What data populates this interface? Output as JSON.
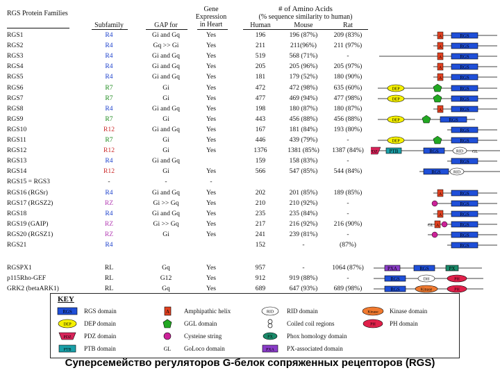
{
  "headers": {
    "families": "RGS Protein Families",
    "subfamily": "Subfamily",
    "gap": "GAP for",
    "gene": "Gene Expression in Heart",
    "amino": "# of Amino Acids",
    "amino_sub": "(% sequence similarity to human)",
    "human": "Human",
    "mouse": "Mouse",
    "rat": "Rat"
  },
  "rows": [
    {
      "name": "RGS1",
      "sub": "R4",
      "sub_color": "r4",
      "gap": "Gi and Gq",
      "gene": "Yes",
      "human": "196",
      "mouse": "196 (87%)",
      "rat": "209 (83%)",
      "dom": "A-RGS"
    },
    {
      "name": "RGS2",
      "sub": "R4",
      "sub_color": "r4",
      "gap": "Gq >> Gi",
      "gene": "Yes",
      "human": "211",
      "mouse": "211(96%)",
      "rat": "211 (97%)",
      "dom": "A-RGS"
    },
    {
      "name": "RGS3",
      "sub": "R4",
      "sub_color": "r4",
      "gap": "Gi and Gq",
      "gene": "Yes",
      "human": "519",
      "mouse": "568 (71%)",
      "rat": "-",
      "dom": "long-A-RGS"
    },
    {
      "name": "RGS4",
      "sub": "R4",
      "sub_color": "r4",
      "gap": "Gi and Gq",
      "gene": "Yes",
      "human": "205",
      "mouse": "205 (96%)",
      "rat": "205 (97%)",
      "dom": "A-RGS"
    },
    {
      "name": "RGS5",
      "sub": "R4",
      "sub_color": "r4",
      "gap": "Gi and Gq",
      "gene": "Yes",
      "human": "181",
      "mouse": "179 (52%)",
      "rat": "180 (90%)",
      "dom": "A-RGS"
    },
    {
      "name": "RGS6",
      "sub": "R7",
      "sub_color": "r7",
      "gap": "Gi",
      "gene": "Yes",
      "human": "472",
      "mouse": "472 (98%)",
      "rat": "635 (60%)",
      "dom": "DEP-GGL-RGS"
    },
    {
      "name": "RGS7",
      "sub": "R7",
      "sub_color": "r7",
      "gap": "Gi",
      "gene": "Yes",
      "human": "477",
      "mouse": "469 (94%)",
      "rat": "477 (98%)",
      "dom": "DEP-GGL-RGS"
    },
    {
      "name": "RGS8",
      "sub": "R4",
      "sub_color": "r4",
      "gap": "Gi and Gq",
      "gene": "Yes",
      "human": "198",
      "mouse": "180 (87%)",
      "rat": "180 (87%)",
      "dom": "A-RGS"
    },
    {
      "name": "RGS9",
      "sub": "R7",
      "sub_color": "r7",
      "gap": "Gi",
      "gene": "Yes",
      "human": "443",
      "mouse": "456 (88%)",
      "rat": "456 (88%)",
      "dom": "DEP-GGL-RGS-mid"
    },
    {
      "name": "RGS10",
      "sub": "R12",
      "sub_color": "r12",
      "gap": "Gi and Gq",
      "gene": "Yes",
      "human": "167",
      "mouse": "181 (84%)",
      "rat": "193 (80%)",
      "dom": "RGS"
    },
    {
      "name": "RGS11",
      "sub": "R7",
      "sub_color": "r7",
      "gap": "Gi",
      "gene": "Yes",
      "human": "446",
      "mouse": "439 (79%)",
      "rat": "-",
      "dom": "DEP-GGL-RGS"
    },
    {
      "name": "RGS12",
      "sub": "R12",
      "sub_color": "r12",
      "gap": "Gi",
      "gene": "Yes",
      "human": "1376",
      "mouse": "1381 (85%)",
      "rat": "1387 (84%)",
      "dom": "PDZ-PTB-RGS-RID"
    },
    {
      "name": "RGS13",
      "sub": "R4",
      "sub_color": "r4",
      "gap": "Gi and Gq",
      "gene": "",
      "human": "159",
      "mouse": "158 (83%)",
      "rat": "-",
      "dom": "RGS"
    },
    {
      "name": "RGS14",
      "sub": "R12",
      "sub_color": "r12",
      "gap": "Gi",
      "gene": "Yes",
      "human": "566",
      "mouse": "547 (85%)",
      "rat": "544 (84%)",
      "dom": "RGS-RID"
    },
    {
      "name": "RGS15 = RGS3",
      "sub": "-",
      "sub_color": "",
      "gap": "-",
      "gene": "-",
      "human": "",
      "mouse": "",
      "rat": "",
      "dom": ""
    },
    {
      "name": "RGS16 (RGSr)",
      "sub": "R4",
      "sub_color": "r4",
      "gap": "Gi and Gq",
      "gene": "Yes",
      "human": "202",
      "mouse": "201 (85%)",
      "rat": "189 (85%)",
      "dom": "A-RGS"
    },
    {
      "name": "RGS17 (RGSZ2)",
      "sub": "RZ",
      "sub_color": "rz",
      "gap": "Gi >> Gq",
      "gene": "Yes",
      "human": "210",
      "mouse": "210 (92%)",
      "rat": "-",
      "dom": "C-RGS"
    },
    {
      "name": "RGS18",
      "sub": "R4",
      "sub_color": "r4",
      "gap": "Gi and Gq",
      "gene": "Yes",
      "human": "235",
      "mouse": "235 (84%)",
      "rat": "-",
      "dom": "A-RGS"
    },
    {
      "name": "RGS19 (GAIP)",
      "sub": "RZ",
      "sub_color": "rz",
      "gap": "Gi >> Gq",
      "gene": "Yes",
      "human": "217",
      "mouse": "216 (92%)",
      "rat": "216 (90%)",
      "dom": "GL-A-C-RGS"
    },
    {
      "name": "RGS20 (RGSZ1)",
      "sub": "RZ",
      "sub_color": "rz",
      "gap": "Gi",
      "gene": "Yes",
      "human": "241",
      "mouse": "239 (81%)",
      "rat": "-",
      "dom": "C-RGS-long"
    },
    {
      "name": "RGS21",
      "sub": "R4",
      "sub_color": "r4",
      "gap": "",
      "gene": "",
      "human": "152",
      "mouse": "-",
      "rat": "(87%)",
      "dom": "RGS"
    },
    {
      "name": "RGSPX1",
      "sub": "RL",
      "sub_color": "",
      "gap": "Gq",
      "gene": "Yes",
      "human": "957",
      "mouse": "-",
      "rat": "1064 (87%)",
      "dom": "PXA-RGS-PX"
    },
    {
      "name": "p115Rho-GEF",
      "sub": "RL",
      "sub_color": "",
      "gap": "G12",
      "gene": "Yes",
      "human": "912",
      "mouse": "919 (88%)",
      "rat": "-",
      "dom": "RGS-DH-PH"
    },
    {
      "name": "GRK2 (betaARK1)",
      "sub": "RL",
      "sub_color": "",
      "gap": "Gq",
      "gene": "Yes",
      "human": "689",
      "mouse": "647 (93%)",
      "rat": "689 (98%)",
      "dom": "RGS-Kinase-PH"
    }
  ],
  "key": {
    "title": "KEY",
    "items": [
      {
        "label": "RGS domain",
        "sym": "RGS"
      },
      {
        "label": "DEP domain",
        "sym": "DEP"
      },
      {
        "label": "PDZ domain",
        "sym": "PDZ"
      },
      {
        "label": "PTB domain",
        "sym": "PTB"
      },
      {
        "label": "Amphipathic helix",
        "sym": "A"
      },
      {
        "label": "GGL domain",
        "sym": "GGL"
      },
      {
        "label": "Cysteine string",
        "sym": "C"
      },
      {
        "label": "GoLoco domain",
        "sym": "GL"
      },
      {
        "label": "RID domain",
        "sym": "RID"
      },
      {
        "label": "Coiled coil regions",
        "sym": "CC"
      },
      {
        "label": "Phox homology domain",
        "sym": "PX"
      },
      {
        "label": "PX-associated domain",
        "sym": "PXA"
      },
      {
        "label": "Kinase domain",
        "sym": "Kinase"
      },
      {
        "label": "PH domain",
        "sym": "PH"
      }
    ]
  },
  "caption": "Суперсемейство регуляторов G-белок сопряженных рецепторов (RGS)",
  "colors": {
    "rgs": "#1f4fd8",
    "dep": "#f5f000",
    "pdz": "#d8245a",
    "ptb": "#1aa0a8",
    "amph": "#e04020",
    "ggl": "#22a822",
    "cys": "#cc2299",
    "px": "#1a8a6a",
    "pxa": "#8a3cc8",
    "kinase": "#f07a30",
    "ph": "#e0204a"
  }
}
